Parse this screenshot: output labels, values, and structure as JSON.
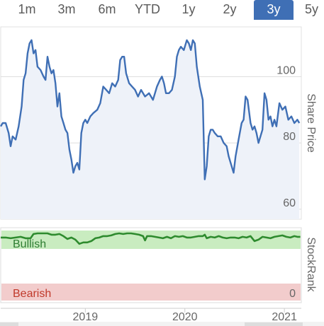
{
  "range_tabs": [
    {
      "label": "1m",
      "active": false
    },
    {
      "label": "3m",
      "active": false
    },
    {
      "label": "6m",
      "active": false
    },
    {
      "label": "YTD",
      "active": false
    },
    {
      "label": "1y",
      "active": false
    },
    {
      "label": "2y",
      "active": false
    },
    {
      "label": "3y",
      "active": true
    },
    {
      "label": "5y",
      "active": false
    }
  ],
  "colors": {
    "line": "#3f6fb5",
    "area": "#eef2f9",
    "bullish_band": "#c9ecc0",
    "bearish_band": "#f2cccc",
    "stockrank_line": "#2e8b2e",
    "bullish_text": "#2e7d32",
    "bearish_text": "#c0392b",
    "active_tab": "#3f6fb5"
  },
  "chart_data": [
    {
      "type": "line",
      "ylabel": "Share Price",
      "ylim": [
        57,
        115
      ],
      "y_ticks": [
        60,
        80,
        100
      ],
      "x_ticks": [
        {
          "label": "2019",
          "x": 2019.0
        },
        {
          "label": "2020",
          "x": 2020.0
        },
        {
          "label": "2021",
          "x": 2021.0
        }
      ],
      "xlim": [
        2018.15,
        2021.17
      ],
      "grid": "horizontal",
      "series": [
        {
          "points": [
            [
              2018.15,
              85
            ],
            [
              2018.17,
              86
            ],
            [
              2018.2,
              86
            ],
            [
              2018.23,
              83
            ],
            [
              2018.25,
              79
            ],
            [
              2018.27,
              82
            ],
            [
              2018.3,
              81
            ],
            [
              2018.33,
              85
            ],
            [
              2018.36,
              91
            ],
            [
              2018.38,
              99
            ],
            [
              2018.4,
              101
            ],
            [
              2018.42,
              107
            ],
            [
              2018.44,
              110
            ],
            [
              2018.46,
              111
            ],
            [
              2018.48,
              107
            ],
            [
              2018.5,
              108
            ],
            [
              2018.52,
              103
            ],
            [
              2018.55,
              102
            ],
            [
              2018.58,
              100
            ],
            [
              2018.6,
              99
            ],
            [
              2018.62,
              106
            ],
            [
              2018.64,
              103
            ],
            [
              2018.66,
              101
            ],
            [
              2018.68,
              102
            ],
            [
              2018.7,
              98
            ],
            [
              2018.72,
              91
            ],
            [
              2018.74,
              95
            ],
            [
              2018.76,
              88
            ],
            [
              2018.78,
              86
            ],
            [
              2018.8,
              84
            ],
            [
              2018.82,
              83
            ],
            [
              2018.84,
              78
            ],
            [
              2018.86,
              75
            ],
            [
              2018.88,
              71
            ],
            [
              2018.9,
              73
            ],
            [
              2018.92,
              74
            ],
            [
              2018.94,
              72
            ],
            [
              2018.96,
              83
            ],
            [
              2018.98,
              86
            ],
            [
              2019.0,
              87
            ],
            [
              2019.02,
              86
            ],
            [
              2019.05,
              88
            ],
            [
              2019.08,
              89
            ],
            [
              2019.12,
              90
            ],
            [
              2019.15,
              92
            ],
            [
              2019.18,
              97
            ],
            [
              2019.21,
              96
            ],
            [
              2019.24,
              95
            ],
            [
              2019.27,
              98
            ],
            [
              2019.3,
              97
            ],
            [
              2019.33,
              99
            ],
            [
              2019.35,
              105
            ],
            [
              2019.37,
              106
            ],
            [
              2019.39,
              106
            ],
            [
              2019.41,
              101
            ],
            [
              2019.44,
              98
            ],
            [
              2019.47,
              97
            ],
            [
              2019.5,
              96
            ],
            [
              2019.53,
              94
            ],
            [
              2019.56,
              96
            ],
            [
              2019.6,
              94
            ],
            [
              2019.64,
              95
            ],
            [
              2019.68,
              93
            ],
            [
              2019.72,
              97
            ],
            [
              2019.75,
              99
            ],
            [
              2019.77,
              100
            ],
            [
              2019.79,
              98
            ],
            [
              2019.81,
              95
            ],
            [
              2019.84,
              95
            ],
            [
              2019.87,
              96
            ],
            [
              2019.9,
              100
            ],
            [
              2019.92,
              106
            ],
            [
              2019.94,
              108
            ],
            [
              2019.96,
              109
            ],
            [
              2019.99,
              108
            ],
            [
              2020.02,
              111
            ],
            [
              2020.04,
              110
            ],
            [
              2020.06,
              108
            ],
            [
              2020.08,
              111
            ],
            [
              2020.1,
              110
            ],
            [
              2020.12,
              103
            ],
            [
              2020.15,
              97
            ],
            [
              2020.18,
              93
            ],
            [
              2020.2,
              69
            ],
            [
              2020.22,
              73
            ],
            [
              2020.24,
              82
            ],
            [
              2020.26,
              84
            ],
            [
              2020.28,
              84
            ],
            [
              2020.3,
              83
            ],
            [
              2020.33,
              82
            ],
            [
              2020.36,
              82
            ],
            [
              2020.39,
              80
            ],
            [
              2020.42,
              79
            ],
            [
              2020.44,
              76
            ],
            [
              2020.46,
              74
            ],
            [
              2020.49,
              71
            ],
            [
              2020.51,
              76
            ],
            [
              2020.54,
              81
            ],
            [
              2020.57,
              86
            ],
            [
              2020.59,
              87
            ],
            [
              2020.61,
              94
            ],
            [
              2020.63,
              93
            ],
            [
              2020.66,
              86
            ],
            [
              2020.68,
              84
            ],
            [
              2020.7,
              85
            ],
            [
              2020.72,
              83
            ],
            [
              2020.74,
              80
            ],
            [
              2020.76,
              82
            ],
            [
              2020.78,
              84
            ],
            [
              2020.8,
              95
            ],
            [
              2020.82,
              93
            ],
            [
              2020.84,
              87
            ],
            [
              2020.86,
              88
            ],
            [
              2020.88,
              85
            ],
            [
              2020.9,
              87
            ],
            [
              2020.92,
              85
            ],
            [
              2020.95,
              92
            ],
            [
              2020.98,
              90
            ],
            [
              2021.01,
              91
            ],
            [
              2021.04,
              87
            ],
            [
              2021.07,
              88
            ],
            [
              2021.1,
              86
            ],
            [
              2021.13,
              87
            ],
            [
              2021.15,
              86
            ]
          ]
        }
      ]
    },
    {
      "type": "line",
      "ylabel": "StockRank",
      "ylim": [
        0,
        100
      ],
      "band_labels": {
        "bullish": "Bullish",
        "bearish": "Bearish",
        "zero": "0"
      },
      "series": [
        {
          "points": [
            [
              2018.15,
              90
            ],
            [
              2018.2,
              90
            ],
            [
              2018.25,
              89
            ],
            [
              2018.3,
              90
            ],
            [
              2018.35,
              91
            ],
            [
              2018.4,
              89
            ],
            [
              2018.45,
              89
            ],
            [
              2018.48,
              95
            ],
            [
              2018.52,
              96
            ],
            [
              2018.58,
              96
            ],
            [
              2018.62,
              96
            ],
            [
              2018.66,
              94
            ],
            [
              2018.7,
              94
            ],
            [
              2018.74,
              95
            ],
            [
              2018.78,
              92
            ],
            [
              2018.82,
              88
            ],
            [
              2018.86,
              90
            ],
            [
              2018.9,
              87
            ],
            [
              2018.94,
              81
            ],
            [
              2018.98,
              83
            ],
            [
              2019.02,
              83
            ],
            [
              2019.06,
              85
            ],
            [
              2019.1,
              89
            ],
            [
              2019.14,
              90
            ],
            [
              2019.18,
              92
            ],
            [
              2019.22,
              92
            ],
            [
              2019.26,
              93
            ],
            [
              2019.3,
              95
            ],
            [
              2019.34,
              96
            ],
            [
              2019.38,
              95
            ],
            [
              2019.42,
              96
            ],
            [
              2019.46,
              96
            ],
            [
              2019.5,
              95
            ],
            [
              2019.54,
              94
            ],
            [
              2019.58,
              92
            ],
            [
              2019.6,
              86
            ],
            [
              2019.62,
              92
            ],
            [
              2019.66,
              92
            ],
            [
              2019.7,
              91
            ],
            [
              2019.74,
              90
            ],
            [
              2019.78,
              89
            ],
            [
              2019.82,
              91
            ],
            [
              2019.86,
              89
            ],
            [
              2019.9,
              92
            ],
            [
              2019.94,
              91
            ],
            [
              2019.98,
              92
            ],
            [
              2020.02,
              90
            ],
            [
              2020.06,
              90
            ],
            [
              2020.1,
              91
            ],
            [
              2020.14,
              92
            ],
            [
              2020.18,
              92
            ],
            [
              2020.2,
              94
            ],
            [
              2020.22,
              89
            ],
            [
              2020.26,
              91
            ],
            [
              2020.3,
              90
            ],
            [
              2020.34,
              92
            ],
            [
              2020.38,
              90
            ],
            [
              2020.42,
              89
            ],
            [
              2020.46,
              90
            ],
            [
              2020.5,
              90
            ],
            [
              2020.54,
              89
            ],
            [
              2020.58,
              91
            ],
            [
              2020.62,
              90
            ],
            [
              2020.66,
              92
            ],
            [
              2020.7,
              85
            ],
            [
              2020.74,
              87
            ],
            [
              2020.78,
              91
            ],
            [
              2020.82,
              90
            ],
            [
              2020.86,
              89
            ],
            [
              2020.9,
              91
            ],
            [
              2020.94,
              92
            ],
            [
              2020.98,
              93
            ],
            [
              2021.02,
              91
            ],
            [
              2021.06,
              90
            ],
            [
              2021.1,
              92
            ],
            [
              2021.13,
              91
            ],
            [
              2021.16,
              91
            ]
          ]
        }
      ]
    }
  ]
}
